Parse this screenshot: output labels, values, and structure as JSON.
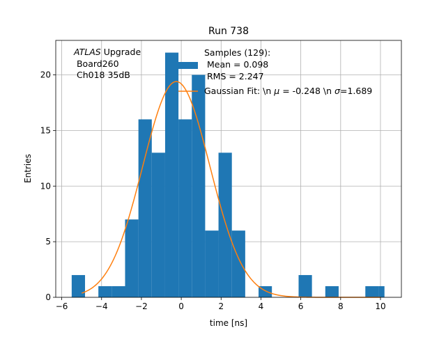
{
  "chart_data": {
    "type": "histogram",
    "title": "Run 738",
    "xlabel": "time [ns]",
    "ylabel": "Entries",
    "xlim": [
      -6.3,
      11.05
    ],
    "ylim": [
      0,
      23.1
    ],
    "xticks": [
      -6,
      -4,
      -2,
      0,
      2,
      4,
      6,
      8,
      10
    ],
    "yticks": [
      0,
      5,
      10,
      15,
      20
    ],
    "grid": true,
    "bar_color": "#1f77b4",
    "line_color": "#ff7f0e",
    "bin_edges": [
      -5.5,
      -4.83,
      -4.16,
      -3.49,
      -2.82,
      -2.15,
      -1.48,
      -0.81,
      -0.14,
      0.53,
      1.2,
      1.87,
      2.54,
      3.21,
      3.88,
      4.55,
      5.22,
      5.89,
      6.56,
      7.23,
      7.9,
      8.57,
      9.24,
      9.91,
      10.2
    ],
    "counts": [
      2,
      0,
      1,
      1,
      7,
      16,
      13,
      22,
      16,
      20,
      6,
      13,
      6,
      0,
      1,
      0,
      0,
      2,
      0,
      1,
      0,
      0,
      1,
      1
    ],
    "fit": {
      "name": "Gaussian Fit",
      "mu": -0.248,
      "sigma": 1.689,
      "amplitude": 19.4,
      "x_range": [
        -5.0,
        10.0
      ]
    },
    "annotation": {
      "experiment": "ATLAS",
      "line1_rest": " Upgrade",
      "line2": " Board260",
      "line3": " Ch018 35dB"
    },
    "legend": {
      "placement": "top-right",
      "samples_label": "Samples (129):",
      "mean_label": " Mean = 0.098",
      "rms_label": " RMS = 2.247",
      "fit_label_prefix": "Gaussian Fit: \\n ",
      "mu_symbol": "μ",
      "fit_label_mid": " = -0.248 \\n ",
      "sigma_symbol": "σ",
      "fit_label_end": "=1.689"
    }
  }
}
